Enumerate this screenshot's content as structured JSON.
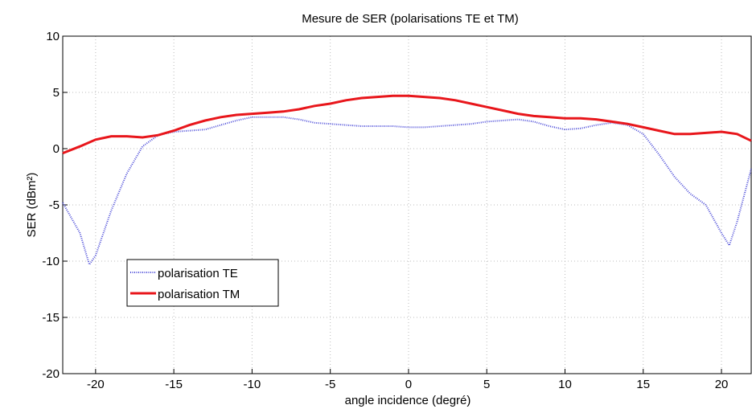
{
  "chart_data": {
    "type": "line",
    "title": "Mesure de SER (polarisations TE et TM)",
    "x_label": "angle incidence (degré)",
    "y_label": "SER (dBm²)",
    "xlim": [
      -22.1,
      21.9
    ],
    "ylim": [
      -20,
      10
    ],
    "xticks": [
      -20,
      -15,
      -10,
      -5,
      0,
      5,
      10,
      15,
      20
    ],
    "yticks": [
      -20,
      -15,
      -10,
      -5,
      0,
      5,
      10
    ],
    "grid": true,
    "legend": "lower left",
    "series": [
      {
        "name": "polarisation TE",
        "color": "#4a4ad8",
        "style": "dotted",
        "x": [
          -22.1,
          -21,
          -20.4,
          -20,
          -19,
          -18,
          -17,
          -16,
          -15,
          -14,
          -13,
          -12,
          -11,
          -10,
          -9,
          -8,
          -7,
          -6,
          -5,
          -4,
          -3,
          -2,
          -1,
          0,
          1,
          2,
          3,
          4,
          5,
          6,
          7,
          8,
          9,
          10,
          11,
          12,
          13,
          14,
          15,
          16,
          17,
          18,
          19,
          20,
          20.5,
          21,
          21.9
        ],
        "values": [
          -4.8,
          -7.5,
          -10.3,
          -9.5,
          -5.5,
          -2.2,
          0.2,
          1.2,
          1.5,
          1.6,
          1.7,
          2.1,
          2.5,
          2.8,
          2.8,
          2.8,
          2.6,
          2.3,
          2.2,
          2.1,
          2.0,
          2.0,
          2.0,
          1.9,
          1.9,
          2.0,
          2.1,
          2.2,
          2.4,
          2.5,
          2.6,
          2.4,
          2.0,
          1.7,
          1.8,
          2.1,
          2.3,
          2.1,
          1.3,
          -0.5,
          -2.5,
          -4.0,
          -5.0,
          -7.5,
          -8.6,
          -6.5,
          -1.8
        ]
      },
      {
        "name": "polarisation TM",
        "color": "#e8161b",
        "style": "solid",
        "x": [
          -22.1,
          -21,
          -20,
          -19,
          -18,
          -17,
          -16,
          -15,
          -14,
          -13,
          -12,
          -11,
          -10,
          -9,
          -8,
          -7,
          -6,
          -5,
          -4,
          -3,
          -2,
          -1,
          0,
          1,
          2,
          3,
          4,
          5,
          6,
          7,
          8,
          9,
          10,
          11,
          12,
          13,
          14,
          15,
          16,
          17,
          18,
          19,
          20,
          21,
          21.9
        ],
        "values": [
          -0.4,
          0.2,
          0.8,
          1.1,
          1.1,
          1.0,
          1.2,
          1.6,
          2.1,
          2.5,
          2.8,
          3.0,
          3.1,
          3.2,
          3.3,
          3.5,
          3.8,
          4.0,
          4.3,
          4.5,
          4.6,
          4.7,
          4.7,
          4.6,
          4.5,
          4.3,
          4.0,
          3.7,
          3.4,
          3.1,
          2.9,
          2.8,
          2.7,
          2.7,
          2.6,
          2.4,
          2.2,
          1.9,
          1.6,
          1.3,
          1.3,
          1.4,
          1.5,
          1.3,
          0.7
        ]
      }
    ]
  }
}
